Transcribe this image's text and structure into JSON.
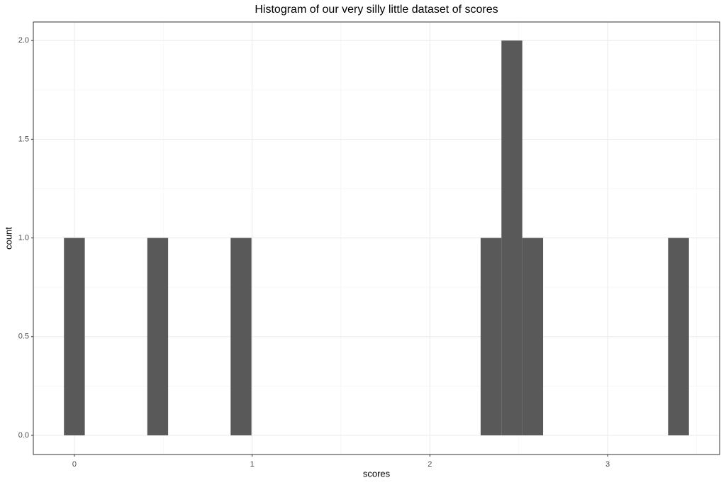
{
  "chart_data": {
    "type": "histogram",
    "title": "Histogram of our very silly little dataset of scores",
    "x_label": "scores",
    "y_label": "count",
    "bins": [
      -0.0586,
      0.0586,
      0.1758,
      0.293,
      0.4102,
      0.5274,
      0.6446,
      0.7618,
      0.879,
      0.9962,
      1.1134,
      1.2306,
      1.3478,
      1.465,
      1.5822,
      1.6994,
      1.8166,
      1.9338,
      2.051,
      2.1682,
      2.2854,
      2.4026,
      2.5198,
      2.637,
      2.7542,
      2.8714,
      2.9886,
      3.1058,
      3.223,
      3.3402,
      3.4574
    ],
    "values": [
      1,
      0,
      0,
      0,
      1,
      0,
      0,
      0,
      1,
      0,
      0,
      0,
      0,
      0,
      0,
      0,
      0,
      0,
      0,
      0,
      1,
      2,
      1,
      0,
      0,
      0,
      0,
      0,
      0,
      1
    ],
    "color": "#595959",
    "xlim": [
      -0.231,
      3.63
    ],
    "ylim": [
      -0.097,
      2.094
    ],
    "xticks": [
      0,
      1,
      2,
      3
    ],
    "yticks": [
      {
        "value": 0,
        "label": "0.0"
      },
      {
        "value": 0.5,
        "label": "0.5"
      },
      {
        "value": 1,
        "label": "1.0"
      },
      {
        "value": 1.5,
        "label": "1.5"
      },
      {
        "value": 2,
        "label": "2.0"
      }
    ],
    "grid": true
  }
}
